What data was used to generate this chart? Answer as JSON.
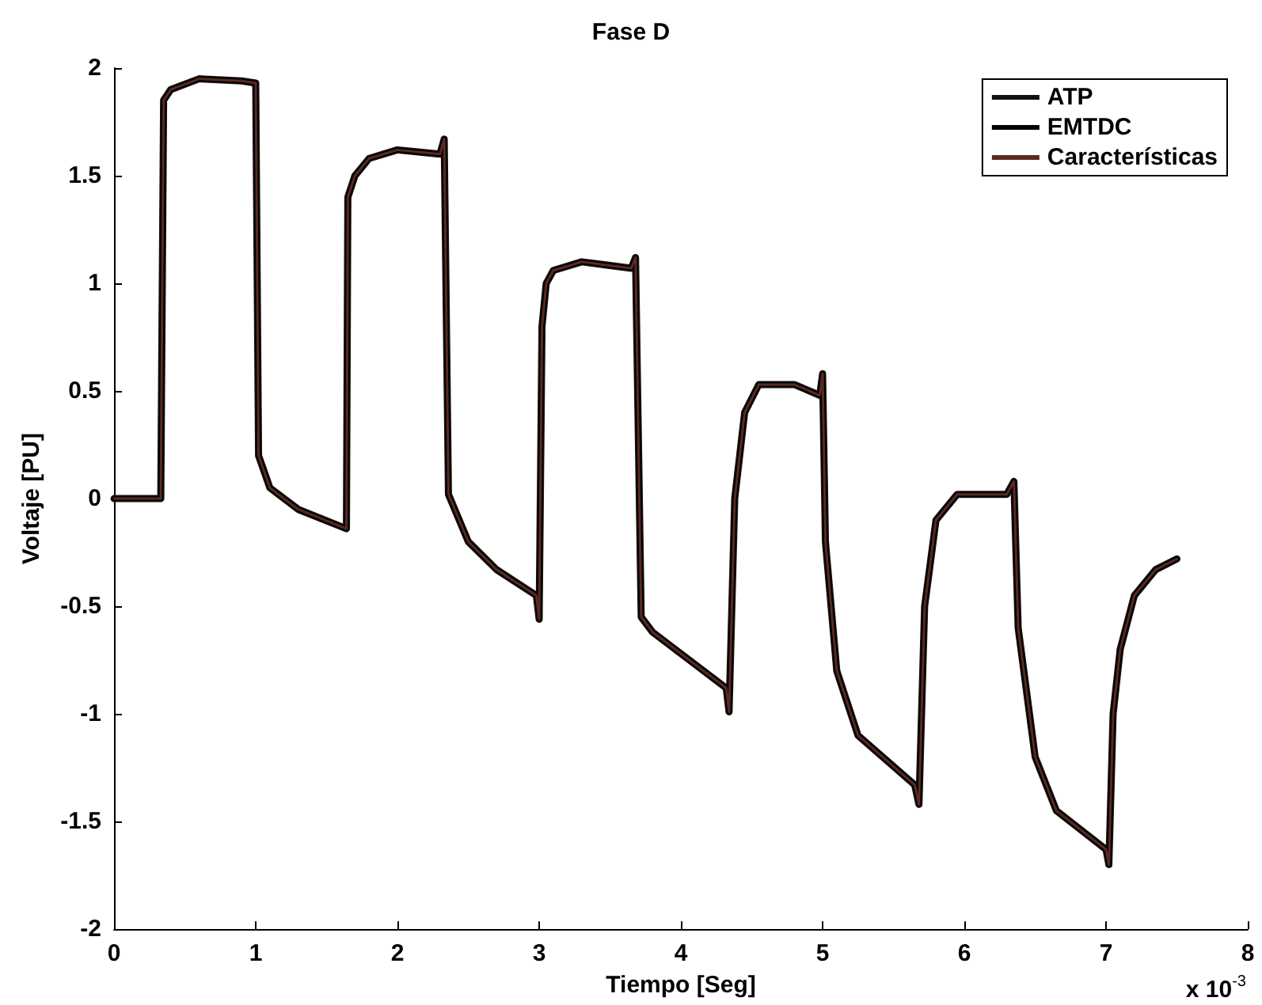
{
  "chart_data": {
    "type": "line",
    "title": "Fase D",
    "xlabel": "Tiempo [Seg]",
    "ylabel": "Voltaje [PU]",
    "annotations": [
      "x 10$^{-3}$"
    ],
    "x": [
      0,
      0.33,
      0.35,
      0.4,
      0.6,
      0.9,
      1.0,
      1.02,
      1.1,
      1.3,
      1.64,
      1.65,
      1.7,
      1.8,
      2.0,
      2.3,
      2.33,
      2.36,
      2.5,
      2.7,
      2.98,
      3.0,
      3.02,
      3.05,
      3.1,
      3.3,
      3.65,
      3.68,
      3.72,
      3.8,
      4.0,
      4.32,
      4.34,
      4.38,
      4.45,
      4.55,
      4.8,
      4.98,
      5.0,
      5.02,
      5.1,
      5.25,
      5.65,
      5.68,
      5.72,
      5.8,
      5.95,
      6.3,
      6.35,
      6.38,
      6.5,
      6.65,
      7.0,
      7.02,
      7.05,
      7.1,
      7.2,
      7.35,
      7.5
    ],
    "series": [
      {
        "name": "ATP",
        "color": "#111111",
        "values": [
          0,
          0,
          1.85,
          1.9,
          1.95,
          1.94,
          1.93,
          0.2,
          0.05,
          -0.05,
          -0.14,
          1.4,
          1.5,
          1.58,
          1.62,
          1.6,
          1.67,
          0.02,
          -0.2,
          -0.33,
          -0.45,
          -0.56,
          0.8,
          1.0,
          1.06,
          1.1,
          1.07,
          1.12,
          -0.55,
          -0.62,
          -0.72,
          -0.88,
          -0.99,
          0,
          0.4,
          0.53,
          0.53,
          0.48,
          0.58,
          -0.2,
          -0.8,
          -1.1,
          -1.33,
          -1.42,
          -0.5,
          -0.1,
          0.02,
          0.02,
          0.08,
          -0.6,
          -1.2,
          -1.45,
          -1.63,
          -1.7,
          -1.0,
          -0.7,
          -0.45,
          -0.33,
          -0.28
        ]
      },
      {
        "name": "EMTDC",
        "color": "#000000",
        "values": [
          0,
          0,
          1.85,
          1.9,
          1.95,
          1.94,
          1.93,
          0.2,
          0.05,
          -0.05,
          -0.14,
          1.4,
          1.5,
          1.58,
          1.62,
          1.6,
          1.67,
          0.02,
          -0.2,
          -0.33,
          -0.45,
          -0.56,
          0.8,
          1.0,
          1.06,
          1.1,
          1.07,
          1.12,
          -0.55,
          -0.62,
          -0.72,
          -0.88,
          -0.99,
          0,
          0.4,
          0.53,
          0.53,
          0.48,
          0.58,
          -0.2,
          -0.8,
          -1.1,
          -1.33,
          -1.42,
          -0.5,
          -0.1,
          0.02,
          0.02,
          0.08,
          -0.6,
          -1.2,
          -1.45,
          -1.63,
          -1.7,
          -1.0,
          -0.7,
          -0.45,
          -0.33,
          -0.28
        ]
      },
      {
        "name": "Características",
        "color": "#5a2a22",
        "values": [
          0,
          0,
          1.85,
          1.9,
          1.95,
          1.94,
          1.93,
          0.2,
          0.05,
          -0.05,
          -0.14,
          1.4,
          1.5,
          1.58,
          1.62,
          1.6,
          1.67,
          0.02,
          -0.2,
          -0.33,
          -0.45,
          -0.56,
          0.8,
          1.0,
          1.06,
          1.1,
          1.07,
          1.12,
          -0.55,
          -0.62,
          -0.72,
          -0.88,
          -0.99,
          0,
          0.4,
          0.53,
          0.53,
          0.48,
          0.58,
          -0.2,
          -0.8,
          -1.1,
          -1.33,
          -1.42,
          -0.5,
          -0.1,
          0.02,
          0.02,
          0.08,
          -0.6,
          -1.2,
          -1.45,
          -1.63,
          -1.7,
          -1.0,
          -0.7,
          -0.45,
          -0.33,
          -0.28
        ]
      }
    ],
    "xlim": [
      0,
      8
    ],
    "xticks": [
      0,
      1,
      2,
      3,
      4,
      5,
      6,
      7,
      8
    ],
    "ylim": [
      -2,
      2
    ],
    "yticks": [
      -2,
      -1.5,
      -1,
      -0.5,
      0,
      0.5,
      1,
      1.5,
      2
    ],
    "grid": false,
    "legend": "top right",
    "marker": "none",
    "line_style": "solid"
  }
}
